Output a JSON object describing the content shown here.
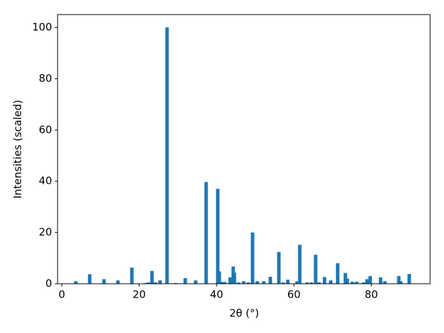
{
  "chart_data": {
    "type": "bar",
    "x_label": "2θ (°)",
    "y_label": "Intensities (scaled)",
    "color": "#1f77b4",
    "x": [
      3.6,
      7.2,
      10.9,
      14.5,
      18.1,
      21.7,
      22.4,
      23.3,
      24.2,
      25.4,
      27.2,
      29.4,
      31.9,
      34.6,
      37.3,
      40.3,
      40.7,
      41.4,
      42.1,
      43.5,
      44.3,
      44.6,
      45.7,
      47.0,
      48.2,
      49.3,
      50.5,
      52.2,
      53.9,
      56.1,
      57.2,
      58.4,
      60.8,
      61.5,
      63.4,
      64.5,
      65.6,
      66.5,
      67.9,
      69.5,
      71.3,
      73.3,
      73.8,
      75.1,
      76.2,
      78.0,
      78.9,
      79.7,
      82.4,
      83.5,
      87.1,
      87.6,
      89.8
    ],
    "values": [
      1.0,
      3.7,
      1.8,
      1.3,
      6.3,
      0.3,
      0.5,
      5.0,
      0.5,
      1.3,
      100,
      0.3,
      2.2,
      1.3,
      39.7,
      37.0,
      4.8,
      0.7,
      0.7,
      2.5,
      6.7,
      4.3,
      0.5,
      1.0,
      0.5,
      20.0,
      1.0,
      1.0,
      2.7,
      12.4,
      0.5,
      1.6,
      1.0,
      15.2,
      0.5,
      0.5,
      11.3,
      0.5,
      2.6,
      1.3,
      8.0,
      4.2,
      2.0,
      0.8,
      0.8,
      0.5,
      1.8,
      3.0,
      2.5,
      1.0,
      3.0,
      1.0,
      3.8
    ],
    "xlim": [
      -1.1,
      95.2
    ],
    "ylim": [
      0,
      105
    ],
    "xticks": [
      0,
      20,
      40,
      60,
      80
    ],
    "yticks": [
      0,
      20,
      40,
      60,
      80,
      100
    ],
    "grid": false
  }
}
